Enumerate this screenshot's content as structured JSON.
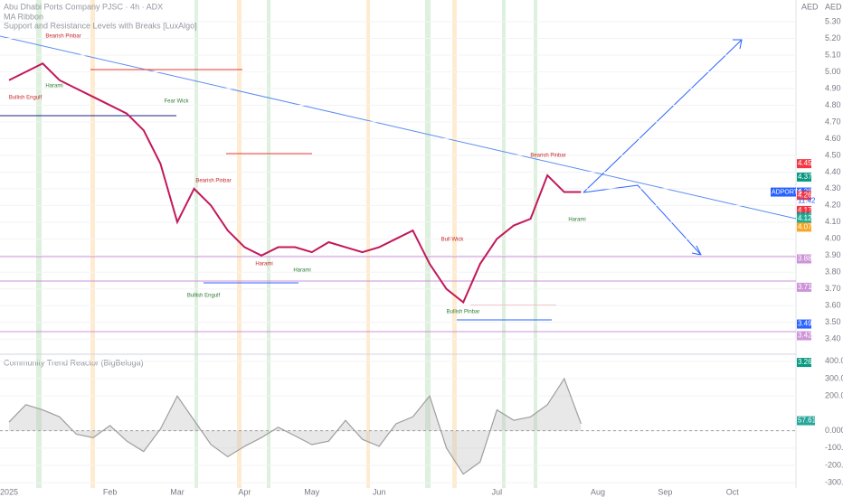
{
  "header": {
    "title": "Abu Dhabi Ports Company PJSC · 4h · ADX",
    "indicators": [
      "MA Ribbon",
      "Support and Resistance Levels with Breaks [LuxAlgo]"
    ],
    "currency": [
      "AED",
      "AED"
    ]
  },
  "chart_data": [
    {
      "type": "line",
      "categories": [
        "2025",
        null,
        null,
        null,
        null,
        null,
        "Feb",
        null,
        null,
        null,
        "Mar",
        null,
        null,
        null,
        "Apr",
        null,
        null,
        null,
        "May",
        null,
        null,
        null,
        "Jun",
        null,
        null,
        null,
        null,
        null,
        null,
        "Jul",
        null,
        null,
        null,
        null,
        null,
        "Aug",
        null,
        null,
        null,
        "Sep",
        null,
        null,
        null,
        "Oct"
      ],
      "series": [
        {
          "name": "ADPORTS",
          "color": "#c2185b",
          "values": [
            4.95,
            5.0,
            5.05,
            4.95,
            4.9,
            4.85,
            4.8,
            4.75,
            4.65,
            4.45,
            4.1,
            4.3,
            4.2,
            4.05,
            3.95,
            3.9,
            3.95,
            3.95,
            3.92,
            3.98,
            3.95,
            3.92,
            3.95,
            4.0,
            4.05,
            3.85,
            3.7,
            3.62,
            3.85,
            4.0,
            4.08,
            4.12,
            4.38,
            4.28,
            4.28,
            null,
            null,
            null,
            null,
            null,
            null,
            null,
            null,
            null
          ]
        }
      ],
      "ylim": [
        3.32,
        5.43
      ],
      "yticks": [
        {
          "value": 3.4,
          "label": "3.40"
        },
        {
          "value": 3.5,
          "label": "3.50"
        },
        {
          "value": 3.6,
          "label": "3.60"
        },
        {
          "value": 3.7,
          "label": "3.70"
        },
        {
          "value": 3.8,
          "label": "3.80"
        },
        {
          "value": 3.9,
          "label": "3.90"
        },
        {
          "value": 4.0,
          "label": "4.00"
        },
        {
          "value": 4.1,
          "label": "4.10"
        },
        {
          "value": 4.2,
          "label": "4.20"
        },
        {
          "value": 4.3,
          "label": "4.30"
        },
        {
          "value": 4.4,
          "label": "4.40"
        },
        {
          "value": 4.5,
          "label": "4.50"
        },
        {
          "value": 4.6,
          "label": "4.60"
        },
        {
          "value": 4.7,
          "label": "4.70"
        },
        {
          "value": 4.8,
          "label": "4.80"
        },
        {
          "value": 4.9,
          "label": "4.90"
        },
        {
          "value": 5.0,
          "label": "5.00"
        },
        {
          "value": 5.1,
          "label": "5.10"
        },
        {
          "value": 5.2,
          "label": "5.20"
        },
        {
          "value": 5.3,
          "label": "5.30"
        }
      ],
      "price_badges": [
        {
          "value": 4.45,
          "color": "#f23645"
        },
        {
          "value": 4.37,
          "color": "#089981"
        },
        {
          "value": 4.28,
          "color": "#2962ff"
        },
        {
          "value": 4.26,
          "color": "#f23645"
        },
        {
          "value": 4.17,
          "color": "#f23645"
        },
        {
          "value": 4.14,
          "color": "#f23645"
        },
        {
          "value": 4.13,
          "color": "#089981"
        },
        {
          "value": 4.12,
          "color": "#22ab94"
        },
        {
          "value": 4.07,
          "color": "#f5a623"
        },
        {
          "value": 3.88,
          "color": "#ce93d8"
        },
        {
          "value": 3.71,
          "color": "#ce93d8"
        },
        {
          "value": 3.49,
          "color": "#2962ff"
        },
        {
          "value": 3.42,
          "color": "#ce93d8"
        },
        {
          "value": 3.26,
          "color": "#089981"
        }
      ],
      "last_label": "ADPORTS",
      "last_time": "11:42",
      "annotations": [
        "Bearish Pinbar",
        "Harami",
        "Bullish Engulf",
        "Fear Wick",
        "Bearish Pinbar",
        "Bullish Engulf",
        "Harami",
        "Harami",
        "Bull Wick",
        "Bullish Pinbar",
        "Bearish Pinbar",
        "Harami"
      ]
    },
    {
      "type": "line",
      "title": "Community Trend Reactor (BigBeluga)",
      "series": [
        {
          "name": "Community Trend Reactor",
          "color": "#9e9e9e",
          "values": [
            50,
            150,
            120,
            80,
            -20,
            -40,
            30,
            -60,
            -120,
            10,
            200,
            60,
            -80,
            -150,
            -90,
            -40,
            20,
            -30,
            -80,
            -60,
            60,
            -50,
            -90,
            40,
            80,
            200,
            -100,
            -250,
            -180,
            120,
            60,
            80,
            150,
            300,
            40,
            null,
            null,
            null,
            null,
            null,
            null,
            null,
            null,
            null
          ]
        }
      ],
      "ylim": [
        -330,
        420
      ],
      "yticks": [
        {
          "value": 400,
          "label": "400.0"
        },
        {
          "value": 300,
          "label": "300.0"
        },
        {
          "value": 200,
          "label": "200.0"
        },
        {
          "value": 0,
          "label": "0.0000"
        },
        {
          "value": -100,
          "label": "-100.00"
        },
        {
          "value": -200,
          "label": "-200.0"
        },
        {
          "value": -300,
          "label": "-300.0"
        }
      ],
      "last_value": 57.61
    }
  ]
}
